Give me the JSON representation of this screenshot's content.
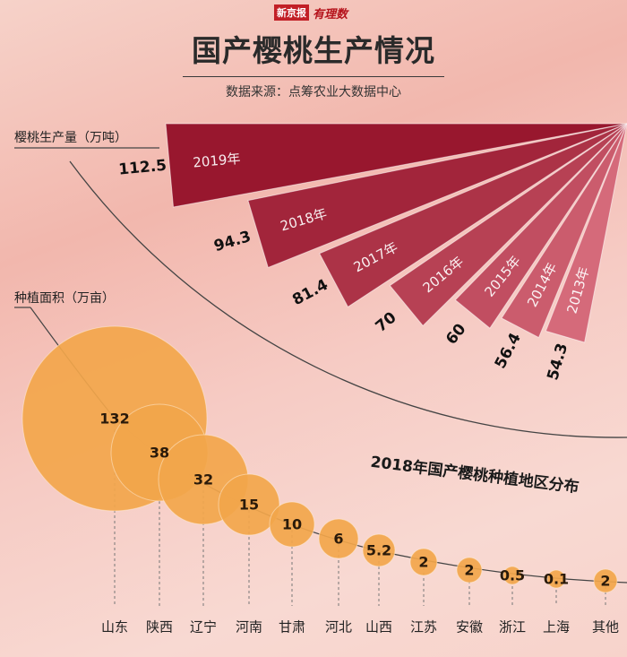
{
  "brand": {
    "red_label": "新京报",
    "sub_label": "有理数"
  },
  "title": "国产樱桃生产情况",
  "source": "数据来源：点筹农业大数据中心",
  "colors": {
    "fan_dark": "#98172e",
    "fan_light": "#d56a7a",
    "bubble": "#f2a64b",
    "bubble_text": "#2a1a0a",
    "line": "#444444"
  },
  "chart_data": [
    {
      "type": "bar",
      "title": "樱桃生产量（万吨）",
      "categories": [
        "2019年",
        "2018年",
        "2017年",
        "2016年",
        "2015年",
        "2014年",
        "2013年"
      ],
      "values": [
        112.5,
        94.3,
        81.4,
        70,
        60,
        56.4,
        54.3
      ],
      "unit": "万吨"
    },
    {
      "type": "scatter",
      "title": "2018年国产樱桃种植地区分布",
      "ylabel": "种植面积（万亩）",
      "categories": [
        "山东",
        "陕西",
        "辽宁",
        "河南",
        "甘肃",
        "河北",
        "山西",
        "江苏",
        "安徽",
        "浙江",
        "上海",
        "其他"
      ],
      "values": [
        132,
        38,
        32,
        15,
        10,
        6,
        5.2,
        2,
        2,
        0.5,
        0.1,
        2
      ],
      "value_labels": [
        "132",
        "38",
        "32",
        "15",
        "10",
        "6",
        "5.2",
        "2",
        "2",
        "0.5",
        "0.1",
        "2"
      ]
    }
  ]
}
